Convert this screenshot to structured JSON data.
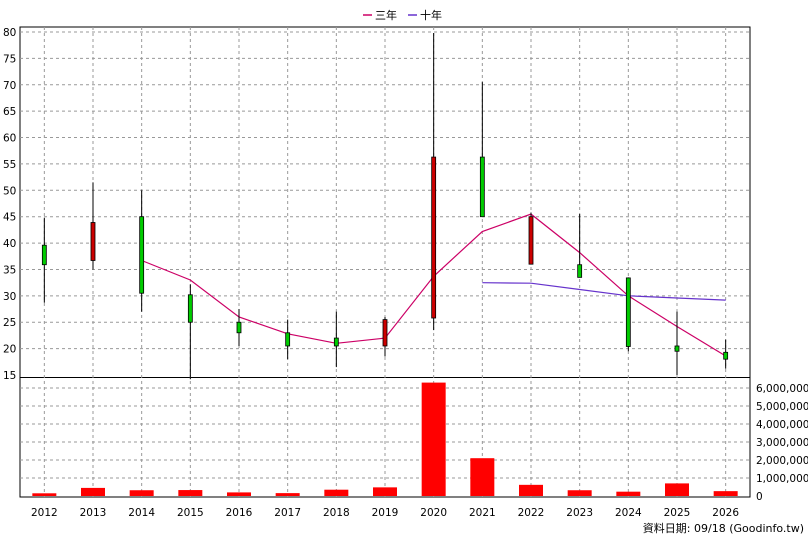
{
  "chart_data": {
    "type": "candlestick",
    "legend": {
      "placement": "top-center",
      "items": [
        {
          "label": "三年",
          "color": "#cc0066"
        },
        {
          "label": "十年",
          "color": "#6633cc"
        }
      ]
    },
    "categories": [
      "2012",
      "2013",
      "2014",
      "2015",
      "2016",
      "2017",
      "2018",
      "2019",
      "2020",
      "2021",
      "2022",
      "2023",
      "2024",
      "2025",
      "2026"
    ],
    "price_axis": {
      "ylim": [
        15,
        80
      ],
      "ticks": [
        80,
        75,
        70,
        65,
        60,
        55,
        50,
        45,
        40,
        35,
        30,
        25,
        20,
        15
      ],
      "grid": true
    },
    "volume_axis": {
      "ylim": [
        0,
        6500000
      ],
      "ticks": [
        "0",
        "1,000,000",
        "2,000,000",
        "3,000,000",
        "4,000,000",
        "5,000,000",
        "6,000,000"
      ],
      "tick_values": [
        0,
        1000000,
        2000000,
        3000000,
        4000000,
        5000000,
        6000000
      ],
      "grid": true
    },
    "candles": [
      {
        "year": "2012",
        "open": 35.9,
        "close": 39.6,
        "high": 44.8,
        "low": 28.7
      },
      {
        "year": "2013",
        "open": 43.9,
        "close": 36.7,
        "high": 51.5,
        "low": 35.0
      },
      {
        "year": "2014",
        "open": 30.5,
        "close": 45.0,
        "high": 50.0,
        "low": 27.0
      },
      {
        "year": "2015",
        "open": 25.0,
        "close": 30.2,
        "high": 32.2,
        "low": 14.2
      },
      {
        "year": "2016",
        "open": 23.0,
        "close": 25.0,
        "high": 27.5,
        "low": 20.5
      },
      {
        "year": "2017",
        "open": 20.5,
        "close": 23.0,
        "high": 25.5,
        "low": 18.0
      },
      {
        "year": "2018",
        "open": 20.5,
        "close": 22.0,
        "high": 27.0,
        "low": 16.5
      },
      {
        "year": "2019",
        "open": 25.5,
        "close": 20.5,
        "high": 26.0,
        "low": 18.5
      },
      {
        "year": "2020",
        "open": 56.3,
        "close": 25.8,
        "high": 79.8,
        "low": 23.5
      },
      {
        "year": "2021",
        "open": 45.0,
        "close": 56.3,
        "high": 70.5,
        "low": 45.0
      },
      {
        "year": "2022",
        "open": 45.0,
        "close": 36.0,
        "high": 45.8,
        "low": 36.0
      },
      {
        "year": "2023",
        "open": 33.5,
        "close": 35.9,
        "high": 45.5,
        "low": 33.5
      },
      {
        "year": "2024",
        "open": 20.4,
        "close": 33.4,
        "high": 33.5,
        "low": 19.5
      },
      {
        "year": "2025",
        "open": 19.5,
        "close": 20.5,
        "high": 27.0,
        "low": 15.0
      },
      {
        "year": "2026",
        "open": 18.0,
        "close": 19.3,
        "high": 21.7,
        "low": 16.2
      }
    ],
    "series": [
      {
        "name": "三年",
        "color": "#cc0066",
        "values": [
          null,
          null,
          36.7,
          33.0,
          26.0,
          22.8,
          21.0,
          22.0,
          33.7,
          42.2,
          45.5,
          38.2,
          30.0,
          24.2,
          18.6
        ]
      },
      {
        "name": "十年",
        "color": "#6633cc",
        "values": [
          null,
          null,
          null,
          null,
          null,
          null,
          null,
          null,
          null,
          32.5,
          32.4,
          31.2,
          30.0,
          29.6,
          29.2
        ]
      }
    ],
    "volume": [
      150000,
      450000,
      320000,
      330000,
      200000,
      160000,
      350000,
      480000,
      6300000,
      2100000,
      620000,
      320000,
      240000,
      700000,
      270000
    ],
    "volume_color": "#ff0000",
    "up_color": "#00cc00",
    "down_color": "#cc0000"
  },
  "footer": {
    "text": "資料日期: 09/18  (Goodinfo.tw)"
  }
}
